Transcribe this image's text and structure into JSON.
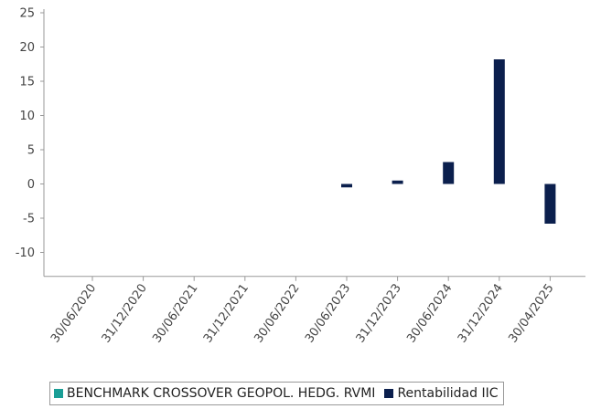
{
  "chart_data": {
    "type": "bar",
    "categories": [
      "30/06/2020",
      "31/12/2020",
      "30/06/2021",
      "31/12/2021",
      "30/06/2022",
      "30/06/2023",
      "31/12/2023",
      "30/06/2024",
      "31/12/2024",
      "30/04/2025"
    ],
    "series": [
      {
        "name": "BENCHMARK CROSSOVER GEOPOL. HEDG. RVMI",
        "color": "#1a9e96",
        "values": [
          null,
          null,
          null,
          null,
          null,
          null,
          null,
          null,
          null,
          null
        ]
      },
      {
        "name": "Rentabilidad IIC",
        "color": "#0b1f4d",
        "values": [
          null,
          null,
          null,
          null,
          null,
          -0.5,
          0.5,
          3.2,
          18.2,
          -5.8
        ]
      }
    ],
    "y_ticks": [
      25,
      20,
      15,
      10,
      5,
      0,
      -5,
      -10
    ],
    "ylim": [
      -13.5,
      25
    ],
    "grid": false,
    "legend_position": "bottom",
    "title": "",
    "xlabel": "",
    "ylabel": ""
  }
}
